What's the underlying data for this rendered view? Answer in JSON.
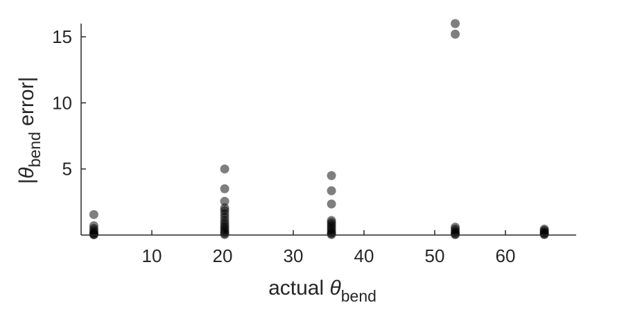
{
  "chart_data": {
    "type": "scatter",
    "title": "",
    "xlabel": {
      "prefix": "actual ",
      "symbol": "θ",
      "subscript": "bend"
    },
    "ylabel": {
      "prefix": "|",
      "symbol": "θ",
      "subscript": "bend",
      "suffix": " error|"
    },
    "xlim": [
      0,
      70
    ],
    "ylim": [
      0,
      16
    ],
    "xticks": [
      10,
      20,
      30,
      40,
      50,
      60
    ],
    "yticks": [
      5,
      10,
      15
    ],
    "x_axis_position": "y=0",
    "grid": false,
    "marker_color": "#000000",
    "marker_opacity": 0.5,
    "points": [
      {
        "x": 1.8,
        "y": 1.55
      },
      {
        "x": 1.8,
        "y": 0.7
      },
      {
        "x": 1.8,
        "y": 0.5
      },
      {
        "x": 1.8,
        "y": 0.35
      },
      {
        "x": 1.8,
        "y": 0.2
      },
      {
        "x": 1.8,
        "y": 0.1
      },
      {
        "x": 1.8,
        "y": 0.05
      },
      {
        "x": 1.8,
        "y": 0.02
      },
      {
        "x": 20.3,
        "y": 5.0
      },
      {
        "x": 20.3,
        "y": 3.5
      },
      {
        "x": 20.3,
        "y": 2.55
      },
      {
        "x": 20.3,
        "y": 2.05
      },
      {
        "x": 20.3,
        "y": 1.85
      },
      {
        "x": 20.3,
        "y": 1.6
      },
      {
        "x": 20.3,
        "y": 1.35
      },
      {
        "x": 20.3,
        "y": 1.1
      },
      {
        "x": 20.3,
        "y": 0.9
      },
      {
        "x": 20.3,
        "y": 0.7
      },
      {
        "x": 20.3,
        "y": 0.55
      },
      {
        "x": 20.3,
        "y": 0.4
      },
      {
        "x": 20.3,
        "y": 0.25
      },
      {
        "x": 20.3,
        "y": 0.12
      },
      {
        "x": 20.3,
        "y": 0.04
      },
      {
        "x": 35.4,
        "y": 4.5
      },
      {
        "x": 35.4,
        "y": 3.35
      },
      {
        "x": 35.4,
        "y": 2.35
      },
      {
        "x": 35.4,
        "y": 1.1
      },
      {
        "x": 35.4,
        "y": 0.95
      },
      {
        "x": 35.4,
        "y": 0.8
      },
      {
        "x": 35.4,
        "y": 0.65
      },
      {
        "x": 35.4,
        "y": 0.5
      },
      {
        "x": 35.4,
        "y": 0.35
      },
      {
        "x": 35.4,
        "y": 0.2
      },
      {
        "x": 35.4,
        "y": 0.1
      },
      {
        "x": 35.4,
        "y": 0.04
      },
      {
        "x": 52.9,
        "y": 16.0
      },
      {
        "x": 52.9,
        "y": 15.2
      },
      {
        "x": 52.9,
        "y": 0.6
      },
      {
        "x": 52.9,
        "y": 0.45
      },
      {
        "x": 52.9,
        "y": 0.3
      },
      {
        "x": 52.9,
        "y": 0.18
      },
      {
        "x": 52.9,
        "y": 0.08
      },
      {
        "x": 52.9,
        "y": 0.03
      },
      {
        "x": 65.5,
        "y": 0.45
      },
      {
        "x": 65.5,
        "y": 0.35
      },
      {
        "x": 65.5,
        "y": 0.25
      },
      {
        "x": 65.5,
        "y": 0.15
      },
      {
        "x": 65.5,
        "y": 0.08
      },
      {
        "x": 65.5,
        "y": 0.03
      }
    ]
  }
}
